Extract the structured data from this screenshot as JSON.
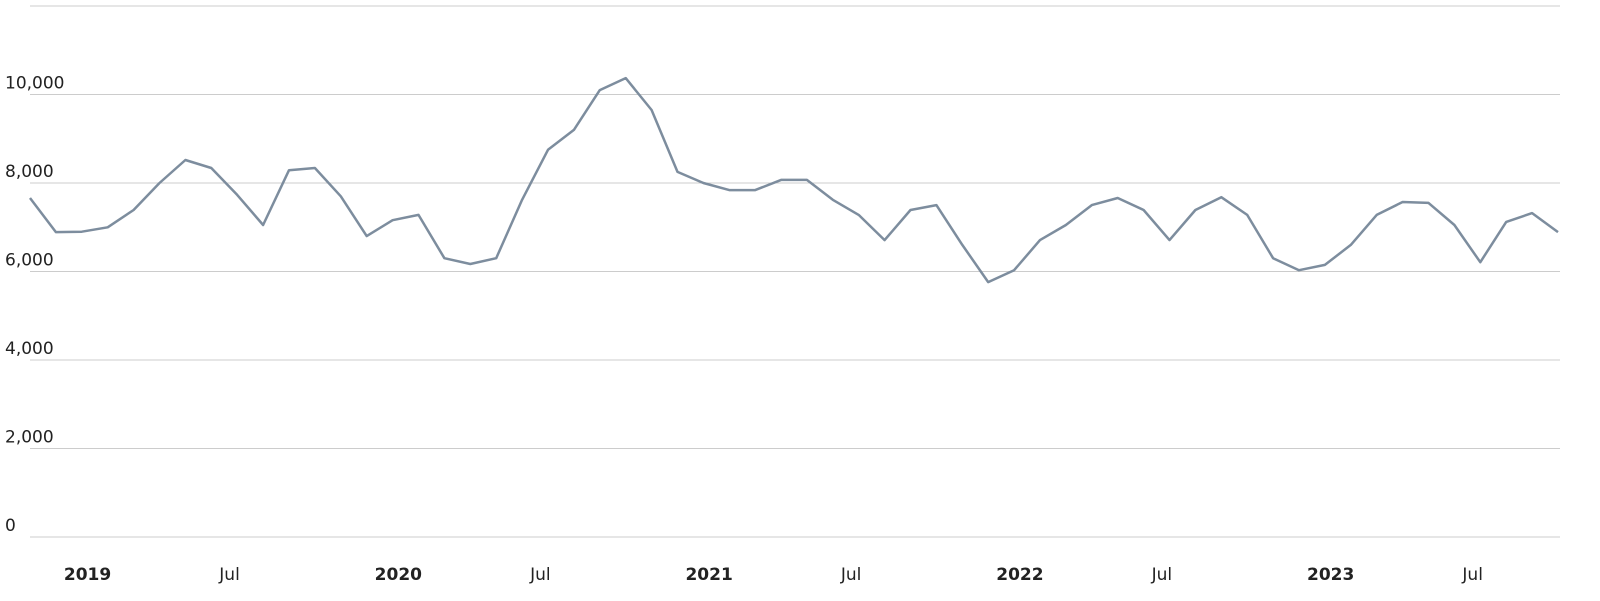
{
  "chart_data": {
    "type": "line",
    "x": [
      "2018-12",
      "2019-01",
      "2019-02",
      "2019-03",
      "2019-04",
      "2019-05",
      "2019-06",
      "2019-07",
      "2019-08",
      "2019-09",
      "2019-10",
      "2019-11",
      "2019-12",
      "2020-01",
      "2020-02",
      "2020-03",
      "2020-04",
      "2020-05",
      "2020-06",
      "2020-07",
      "2020-08",
      "2020-09",
      "2020-10",
      "2020-11",
      "2020-12",
      "2021-01",
      "2021-02",
      "2021-03",
      "2021-04",
      "2021-05",
      "2021-06",
      "2021-07",
      "2021-08",
      "2021-09",
      "2021-10",
      "2021-11",
      "2021-12",
      "2022-01",
      "2022-02",
      "2022-03",
      "2022-04",
      "2022-05",
      "2022-06",
      "2022-07",
      "2022-08",
      "2022-09",
      "2022-10",
      "2022-11",
      "2022-12",
      "2023-01",
      "2023-02",
      "2023-03",
      "2023-04",
      "2023-05",
      "2023-06",
      "2023-07",
      "2023-08",
      "2023-09",
      "2023-10",
      "2023-11"
    ],
    "series": [
      {
        "color": "#7d8d9e",
        "values": [
          7660,
          6890,
          6900,
          7000,
          7390,
          8000,
          8520,
          8340,
          7730,
          7050,
          8290,
          8340,
          7700,
          6800,
          7160,
          7280,
          6300,
          6170,
          6300,
          7620,
          8750,
          9200,
          10100,
          10370,
          9650,
          8250,
          8000,
          7840,
          7840,
          8070,
          8070,
          7620,
          7280,
          6710,
          7390,
          7500,
          6600,
          5760,
          6030,
          6710,
          7050,
          7500,
          7660,
          7390,
          6710,
          7390,
          7680,
          7280,
          6300,
          6030,
          6150,
          6600,
          7280,
          7570,
          7550,
          7050,
          6210,
          7120,
          7320,
          6890
        ]
      }
    ],
    "xlim": [
      "2018-12",
      "2023-11"
    ],
    "xticks": [
      {
        "value": "2019-01",
        "label": "2019"
      },
      {
        "value": "2019-07",
        "label": "Jul"
      },
      {
        "value": "2020-01",
        "label": "2020"
      },
      {
        "value": "2020-07",
        "label": "Jul"
      },
      {
        "value": "2021-01",
        "label": "2021"
      },
      {
        "value": "2021-07",
        "label": "Jul"
      },
      {
        "value": "2022-01",
        "label": "2022"
      },
      {
        "value": "2022-07",
        "label": "Jul"
      },
      {
        "value": "2023-01",
        "label": "2023"
      },
      {
        "value": "2023-07",
        "label": "Jul"
      }
    ],
    "ylim": [
      0,
      12000
    ],
    "yticks": [
      0,
      {
        "value": 2000,
        "label": "2,000"
      },
      {
        "value": 4000,
        "label": "4,000"
      },
      {
        "value": 6000,
        "label": "6,000"
      },
      {
        "value": 8000,
        "label": "8,000"
      },
      {
        "value": 10000,
        "label": "10,000"
      }
    ],
    "grid": true
  }
}
